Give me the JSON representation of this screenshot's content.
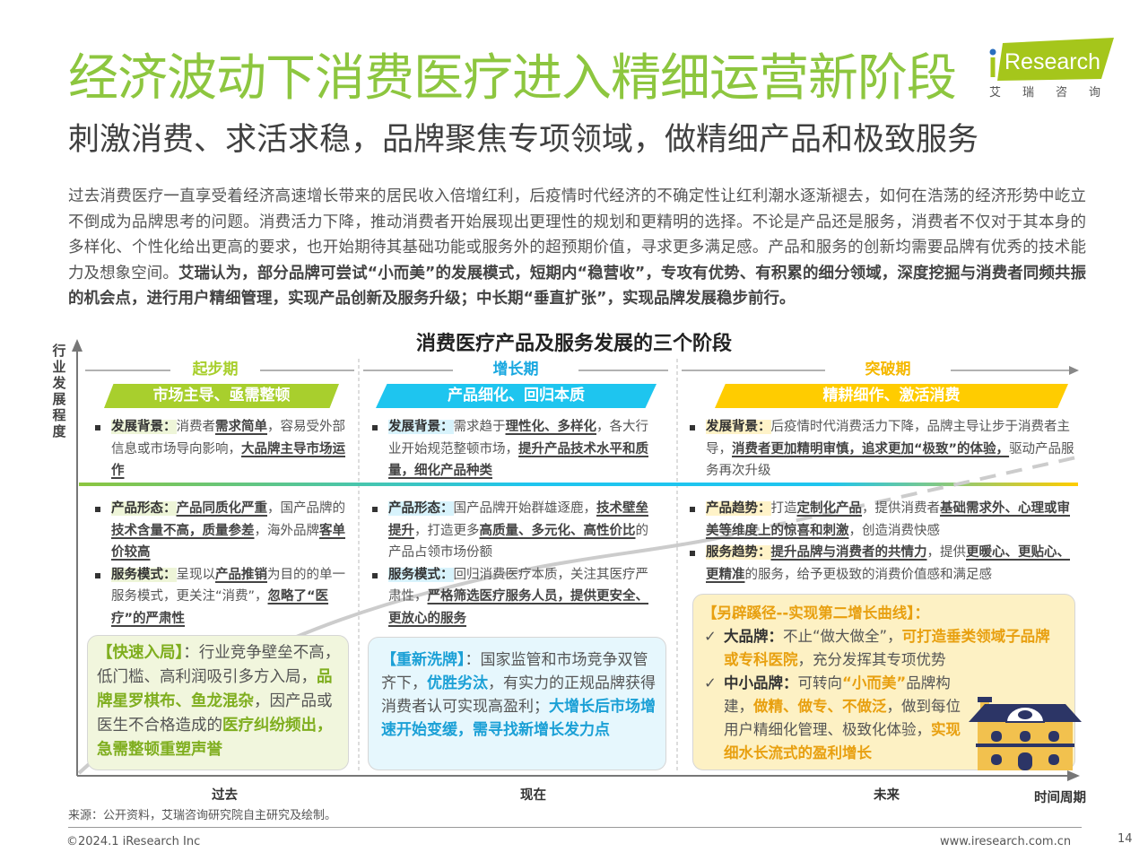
{
  "header": {
    "title": "经济波动下消费医疗进入精细运营新阶段",
    "subtitle": "刺激消费、求活求稳，品牌聚焦专项领域，做精细产品和极致服务",
    "logo": {
      "brand": "iResearch",
      "cn": "艾 瑞 咨 询",
      "color": "#a5c61b",
      "dot_color": "#2a6fbe"
    }
  },
  "intro": [
    [
      "过去消费医疗一直享受着经济高速增长带来的居民收入倍增红利，后疫情时代经济的不确定性让红利潮水逐渐褪去，如何在浩荡的经济形势中屹立不倒成为品牌思考的问题。消费活力下降，推动消费者开始展现出更理性的规划和更精明的选择。不论是产品还是服务，消费者不仅对于其本身的多样化、个性化给出更高的要求，也开始期待其基础功能或服务外的超预期价值，寻求更多满足感。产品和服务的创新均需要品牌有优秀的技术能力及想象空间。",
      ""
    ],
    [
      "艾瑞认为，部分品牌可尝试“小而美”的发展模式，短期内“稳营收”，专攻有优势、有积累的细分领域，深度挖掘与消费者同频共振的机会点，进行用户精细管理，实现产品创新及服务升级；中长期“垂直扩张”，实现品牌发展稳步前行。",
      "b"
    ]
  ],
  "diagram": {
    "title": "消费医疗产品及服务发展的三个阶段",
    "y_axis_label": "行业发展程度",
    "x_axis_label": "时间周期",
    "time_labels": [
      "过去",
      "现在",
      "未来"
    ],
    "colors": {
      "stage1": "#a8cf2d",
      "stage2": "#1ec5ef",
      "stage3": "#ffcc00"
    },
    "stages": [
      {
        "name": "起步期",
        "banner": "市场主导、亟需整顿",
        "background": [
          [
            "发展背景：",
            "k"
          ],
          [
            "消费者",
            ""
          ],
          [
            "需求简单",
            "bu"
          ],
          [
            "，容易受外部信息或市场导向影响，",
            ""
          ],
          [
            "大品牌主导市场运作",
            "bu"
          ]
        ],
        "items": [
          [
            [
              "产品形态：",
              "k"
            ],
            [
              "产品同质化严重",
              "bu"
            ],
            [
              "，国产品牌的",
              ""
            ],
            [
              "技术含量不高，质量参差",
              "bu"
            ],
            [
              "，海外品牌",
              ""
            ],
            [
              "客单价较高",
              "bu"
            ]
          ],
          [
            [
              "服务模式：",
              "k"
            ],
            [
              "呈现以",
              ""
            ],
            [
              "产品推销",
              "bu"
            ],
            [
              "为目的的单一服务模式，更关注“消费”，",
              ""
            ],
            [
              "忽略了“医疗”的严肃性",
              "bu"
            ]
          ]
        ],
        "box": [
          [
            "【快速入局】",
            "g"
          ],
          [
            "：行业竞争壁垒不高，低门槛、高利润吸引多方入局，",
            ""
          ],
          [
            "品牌星罗棋布、鱼龙混杂",
            "g"
          ],
          [
            "，因产品或医生不合格造成的",
            ""
          ],
          [
            "医疗纠纷频出，急需整顿重塑声誉",
            "g"
          ]
        ]
      },
      {
        "name": "增长期",
        "banner": "产品细化、回归本质",
        "background": [
          [
            "发展背景：",
            "k"
          ],
          [
            "需求趋于",
            ""
          ],
          [
            "理性化、多样化",
            "bu"
          ],
          [
            "，各大行业开始规范整顿市场，",
            ""
          ],
          [
            "提升产品技术水平和质量，细化产品种类",
            "bu"
          ]
        ],
        "items": [
          [
            [
              "产品形态：",
              "k"
            ],
            [
              "国产品牌开始群雄逐鹿，",
              ""
            ],
            [
              "技术壁垒提升",
              "bu"
            ],
            [
              "，打造更多",
              ""
            ],
            [
              "高质量、多元化、高性价比",
              "bu"
            ],
            [
              "的产品占领市场份额",
              ""
            ]
          ],
          [
            [
              "服务模式：",
              "k"
            ],
            [
              "回归消费医疗本质，关注其医疗严肃性，",
              ""
            ],
            [
              "严格筛选医疗服务人员，提供更安全、更放心的服务",
              "bu"
            ]
          ]
        ],
        "box": [
          [
            "【重新洗牌】",
            "bl"
          ],
          [
            "：国家监管和市场竞争双管齐下，",
            ""
          ],
          [
            "优胜劣汰",
            "bl"
          ],
          [
            "，有实力的正规品牌获得消费者认可实现高盈利；",
            ""
          ],
          [
            "大增长后市场增速开始变缓，需寻找新增长发力点",
            "bl"
          ]
        ]
      },
      {
        "name": "突破期",
        "banner": "精耕细作、激活消费",
        "background": [
          [
            "发展背景：",
            "k"
          ],
          [
            "后疫情时代消费活力下降，品牌主导让步于消费者主导，",
            ""
          ],
          [
            "消费者更加精明审慎，追求更加“极致”的体验，",
            "bu"
          ],
          [
            "驱动产品服务再次升级",
            ""
          ]
        ],
        "items": [
          [
            [
              "产品趋势：",
              "k"
            ],
            [
              "打造",
              ""
            ],
            [
              "定制化产品",
              "bu"
            ],
            [
              "，提供消费者",
              ""
            ],
            [
              "基础需求外、心理或审美等维度上的惊喜和刺激",
              "bu"
            ],
            [
              "，创造消费快感",
              ""
            ]
          ],
          [
            [
              "服务趋势：",
              "k"
            ],
            [
              "提升品牌与消费者的共情力",
              "bu"
            ],
            [
              "，提供",
              ""
            ],
            [
              "更暖心、更贴心、更精准",
              "bu"
            ],
            [
              "的服务，给予更极致的消费价值感和满足感",
              ""
            ]
          ]
        ],
        "box_title": "【另辟蹊径--实现第二增长曲线】：",
        "box_items": [
          [
            [
              "大品牌：",
              "b"
            ],
            [
              "不止“做大做全”，",
              ""
            ],
            [
              "可打造垂类领域子品牌或专科医院",
              "o"
            ],
            [
              "，充分发挥其专项优势",
              ""
            ]
          ],
          [
            [
              "中小品牌：",
              "b"
            ],
            [
              "可转向",
              ""
            ],
            [
              "“小而美”",
              "o"
            ],
            [
              "品牌构建，",
              ""
            ],
            [
              "做精、做专、不做泛",
              "o"
            ],
            [
              "，做到每位用户精细化管理、极致化体验，",
              ""
            ],
            [
              "实现细水长流式的盈利增长",
              "o"
            ]
          ]
        ],
        "box_icon": "house-icon",
        "check_icon": "checkmark-icon"
      }
    ]
  },
  "footer": {
    "source": "来源：公开资料，艾瑞咨询研究院自主研究及绘制。",
    "copyright": "©2024.1 iResearch Inc",
    "website": "www.iresearch.com.cn",
    "page": "14"
  }
}
